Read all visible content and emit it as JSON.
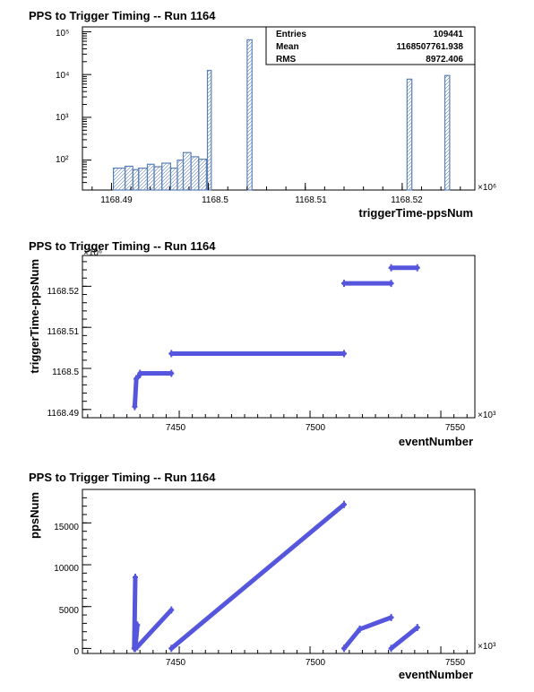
{
  "colors": {
    "hist_line": "#5b80b8",
    "scatter": "#5555dd",
    "axis": "#000000"
  },
  "chart_data": [
    {
      "type": "bar",
      "title": "PPS to Trigger Timing -- Run 1164",
      "xlabel": "triggerTime-ppsNum",
      "ylabel": "",
      "x_exponent": "×10⁶",
      "xlim": [
        1168.487,
        1168.5275
      ],
      "ylim": [
        20,
        130000
      ],
      "yscale": "log",
      "xticks": [
        "1168.49",
        "1168.5",
        "1168.51",
        "1168.52"
      ],
      "yticks": [
        "10²",
        "10³",
        "10⁴",
        "10⁵"
      ],
      "fill_pattern": "hatched",
      "bins": [
        {
          "x": 1168.4902,
          "w": 0.0012,
          "y": 65
        },
        {
          "x": 1168.4914,
          "w": 0.0008,
          "y": 72
        },
        {
          "x": 1168.4922,
          "w": 0.0006,
          "y": 60
        },
        {
          "x": 1168.4928,
          "w": 0.0009,
          "y": 65
        },
        {
          "x": 1168.4937,
          "w": 0.0007,
          "y": 80
        },
        {
          "x": 1168.4944,
          "w": 0.0008,
          "y": 70
        },
        {
          "x": 1168.4952,
          "w": 0.0009,
          "y": 85
        },
        {
          "x": 1168.4961,
          "w": 0.0007,
          "y": 65
        },
        {
          "x": 1168.4968,
          "w": 0.0006,
          "y": 100
        },
        {
          "x": 1168.4974,
          "w": 0.0008,
          "y": 150
        },
        {
          "x": 1168.4982,
          "w": 0.0008,
          "y": 120
        },
        {
          "x": 1168.499,
          "w": 0.0008,
          "y": 105
        },
        {
          "x": 1168.4999,
          "w": 0.0004,
          "y": 12500
        },
        {
          "x": 1168.504,
          "w": 0.0005,
          "y": 65000
        },
        {
          "x": 1168.5205,
          "w": 0.0005,
          "y": 7800
        },
        {
          "x": 1168.5244,
          "w": 0.0005,
          "y": 9500
        }
      ],
      "stats": {
        "rows": [
          {
            "label": "Entries",
            "value": "109441"
          },
          {
            "label": "Mean",
            "value": "1168507761.938"
          },
          {
            "label": "RMS",
            "value": "8972.406"
          }
        ]
      }
    },
    {
      "type": "scatter",
      "title": "PPS to Trigger Timing -- Run 1164",
      "xlabel": "eventNumber",
      "ylabel": "triggerTime-ppsNum",
      "x_exponent": "×10³",
      "y_exponent": "×10⁶",
      "xlim": [
        7413,
        7563
      ],
      "ylim": [
        1168.488,
        1168.5275
      ],
      "xticks": [
        "7450",
        "7500",
        "7550"
      ],
      "yticks": [
        "1168.49",
        "1168.5",
        "1168.51",
        "1168.52"
      ],
      "segments": [
        {
          "x0": 7433,
          "y0": 1168.4907,
          "x1": 7433.6,
          "y1": 1168.4975
        },
        {
          "x0": 7433.6,
          "y0": 1168.4975,
          "x1": 7435,
          "y1": 1168.4985
        },
        {
          "x0": 7435,
          "y0": 1168.4988,
          "x1": 7447,
          "y1": 1168.4988
        },
        {
          "x0": 7447,
          "y0": 1168.5036,
          "x1": 7513,
          "y1": 1168.5036
        },
        {
          "x0": 7513,
          "y0": 1168.5207,
          "x1": 7531,
          "y1": 1168.5207
        },
        {
          "x0": 7531,
          "y0": 1168.5245,
          "x1": 7541,
          "y1": 1168.5245
        }
      ]
    },
    {
      "type": "scatter",
      "title": "PPS to Trigger Timing -- Run 1164",
      "xlabel": "eventNumber",
      "ylabel": "ppsNum",
      "x_exponent": "×10³",
      "xlim": [
        7413,
        7563
      ],
      "ylim": [
        -600,
        19000
      ],
      "xticks": [
        "7450",
        "7500",
        "7550"
      ],
      "yticks": [
        "0",
        "5000",
        "10000",
        "15000"
      ],
      "segments": [
        {
          "x0": 7432.8,
          "y0": 0,
          "x1": 7433.2,
          "y1": 8500
        },
        {
          "x0": 7433.2,
          "y0": 0,
          "x1": 7434,
          "y1": 2800
        },
        {
          "x0": 7434,
          "y0": 200,
          "x1": 7447,
          "y1": 4600
        },
        {
          "x0": 7447,
          "y0": 0,
          "x1": 7513,
          "y1": 17200
        },
        {
          "x0": 7513,
          "y0": 0,
          "x1": 7519,
          "y1": 2300
        },
        {
          "x0": 7519,
          "y0": 2300,
          "x1": 7531,
          "y1": 3700
        },
        {
          "x0": 7531,
          "y0": 0,
          "x1": 7541,
          "y1": 2500
        }
      ]
    }
  ]
}
